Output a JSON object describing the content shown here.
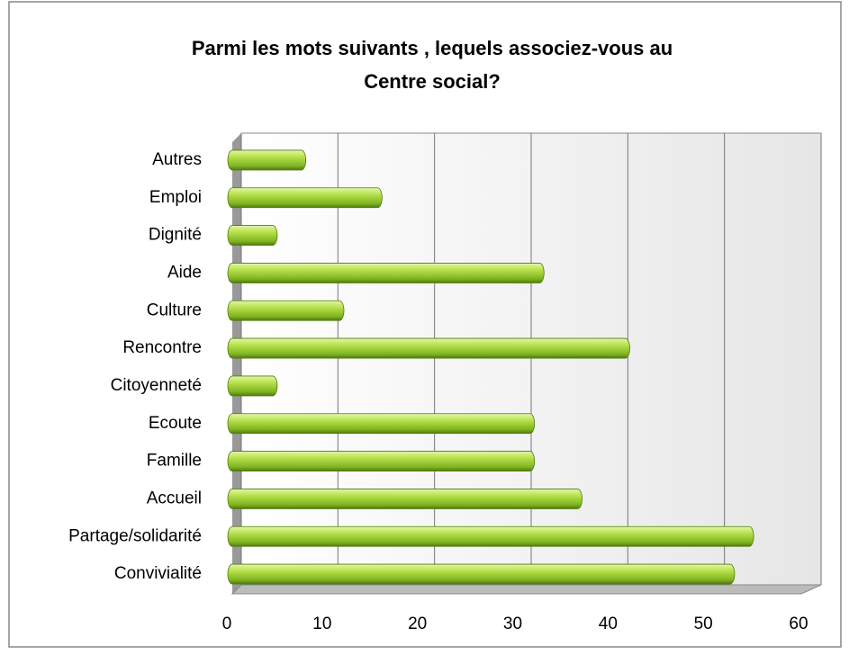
{
  "chart_data": {
    "type": "bar",
    "orientation": "horizontal",
    "title": "Parmi les mots suivants , lequels associez-vous au Centre social?",
    "categories": [
      "Autres",
      "Emploi",
      "Dignité",
      "Aide",
      "Culture",
      "Rencontre",
      "Citoyenneté",
      "Ecoute",
      "Famille",
      "Accueil",
      "Partage/solidarité",
      "Convivialité"
    ],
    "values": [
      8,
      16,
      5,
      33,
      12,
      42,
      5,
      32,
      32,
      37,
      55,
      53
    ],
    "color": "#9acd32",
    "xlim": [
      0,
      60
    ],
    "xticks": [
      0,
      10,
      20,
      30,
      40,
      50,
      60
    ],
    "grid": true
  }
}
